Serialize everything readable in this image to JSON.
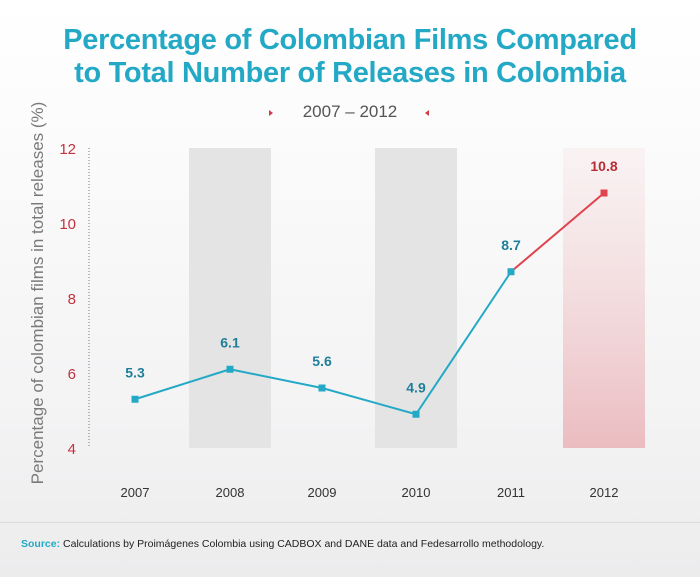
{
  "title_line1": "Percentage of Colombian Films Compared",
  "title_line2": "to Total Number of Releases in Colombia",
  "period": "2007 – 2012",
  "source_label": "Source:",
  "source_text": "Calculations by Proimágenes Colombia using CADBOX and DANE data and Fedesarrollo methodology.",
  "colors": {
    "title": "#23a9c6",
    "line": "#23a9c6",
    "highlight": "#e0434d",
    "axis_ticks": "#c0323d",
    "band": "#e4e4e4"
  },
  "chart_data": {
    "type": "line",
    "title": "Percentage of Colombian Films Compared to Total Number of Releases in Colombia",
    "subtitle": "2007 – 2012",
    "xlabel": "",
    "ylabel": "Percentage of colombian films in total releases (%)",
    "categories": [
      "2007",
      "2008",
      "2009",
      "2010",
      "2011",
      "2012"
    ],
    "values": [
      5.3,
      6.1,
      5.6,
      4.9,
      8.7,
      10.8
    ],
    "data_labels": [
      "5.3",
      "6.1",
      "5.6",
      "4.9",
      "8.7",
      "10.8"
    ],
    "yticks": [
      "4",
      "6",
      "8",
      "10",
      "12"
    ],
    "ylim": [
      4,
      12
    ],
    "shaded_categories": [
      "2008",
      "2010"
    ],
    "highlight_category": "2012",
    "grid": false
  }
}
